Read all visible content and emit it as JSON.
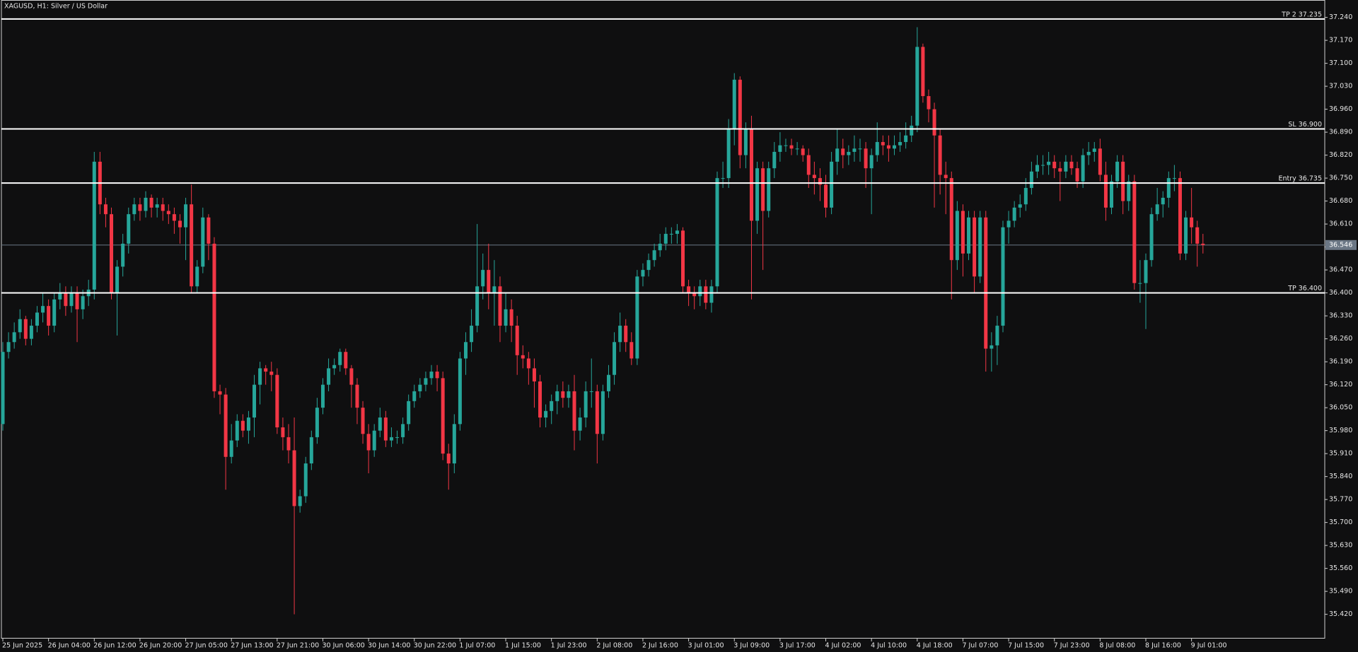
{
  "chart_data": {
    "type": "candlestick",
    "title": "XAGUSD, H1:  Silver / US Dollar",
    "up_color": "#26a69a",
    "down_color": "#f23645",
    "categories": [
      "25 Jun 2025",
      null,
      null,
      null,
      null,
      null,
      null,
      null,
      "26 Jun 04:00",
      null,
      null,
      null,
      null,
      null,
      null,
      null,
      "26 Jun 12:00",
      null,
      null,
      null,
      null,
      null,
      null,
      null,
      "26 Jun 20:00",
      null,
      null,
      null,
      null,
      null,
      null,
      null,
      "27 Jun 05:00",
      null,
      null,
      null,
      null,
      null,
      null,
      null,
      "27 Jun 13:00",
      null,
      null,
      null,
      null,
      null,
      null,
      null,
      "27 Jun 21:00",
      null,
      null,
      null,
      null,
      null,
      null,
      null,
      "30 Jun 06:00",
      null,
      null,
      null,
      null,
      null,
      null,
      null,
      "30 Jun 14:00",
      null,
      null,
      null,
      null,
      null,
      null,
      null,
      "30 Jun 22:00",
      null,
      null,
      null,
      null,
      null,
      null,
      null,
      "1 Jul 07:00",
      null,
      null,
      null,
      null,
      null,
      null,
      null,
      "1 Jul 15:00",
      null,
      null,
      null,
      null,
      null,
      null,
      null,
      "1 Jul 23:00",
      null,
      null,
      null,
      null,
      null,
      null,
      null,
      "2 Jul 08:00",
      null,
      null,
      null,
      null,
      null,
      null,
      null,
      "2 Jul 16:00",
      null,
      null,
      null,
      null,
      null,
      null,
      null,
      "3 Jul 01:00",
      null,
      null,
      null,
      null,
      null,
      null,
      null,
      "3 Jul 09:00",
      null,
      null,
      null,
      null,
      null,
      null,
      null,
      "3 Jul 17:00",
      null,
      null,
      null,
      null,
      null,
      null,
      null,
      "4 Jul 02:00",
      null,
      null,
      null,
      null,
      null,
      null,
      null,
      "4 Jul 10:00",
      null,
      null,
      null,
      null,
      null,
      null,
      null,
      "4 Jul 18:00",
      null,
      null,
      null,
      null,
      null,
      null,
      null,
      "7 Jul 07:00",
      null,
      null,
      null,
      null,
      null,
      null,
      null,
      "7 Jul 15:00",
      null,
      null,
      null,
      null,
      null,
      null,
      null,
      "7 Jul 23:00",
      null,
      null,
      null,
      null,
      null,
      null,
      null,
      "8 Jul 08:00",
      null,
      null,
      null,
      null,
      null,
      null,
      null,
      "8 Jul 16:00",
      null,
      null,
      null,
      null,
      null,
      null,
      null,
      "9 Jul 01:00",
      null,
      null
    ],
    "open": [
      36.0,
      36.22,
      36.25,
      36.28,
      36.32,
      36.26,
      36.3,
      36.34,
      36.36,
      36.3,
      36.38,
      36.4,
      36.36,
      36.4,
      36.35,
      36.39,
      36.41,
      36.8,
      36.67,
      36.64,
      36.4,
      36.48,
      36.55,
      36.64,
      36.67,
      36.65,
      36.69,
      36.66,
      36.67,
      36.65,
      36.64,
      36.62,
      36.6,
      36.67,
      36.42,
      36.48,
      36.63,
      36.55,
      36.1,
      36.09,
      35.9,
      35.95,
      36.01,
      35.98,
      36.02,
      36.12,
      36.17,
      36.16,
      36.15,
      35.99,
      35.96,
      35.92,
      35.75,
      35.78,
      35.88,
      35.96,
      36.05,
      36.12,
      36.17,
      36.18,
      36.22,
      36.17,
      36.12,
      36.05,
      35.97,
      35.92,
      35.98,
      36.02,
      35.95,
      35.96,
      35.96,
      36.0,
      36.07,
      36.1,
      36.12,
      36.14,
      36.16,
      36.14,
      35.91,
      35.88,
      36.0,
      36.2,
      36.25,
      36.3,
      36.42,
      36.47,
      36.4,
      36.42,
      36.3,
      36.35,
      36.3,
      36.21,
      36.2,
      36.17,
      36.13,
      36.02,
      36.04,
      36.07,
      36.1,
      36.08,
      36.1,
      35.98,
      36.02,
      36.1,
      36.1,
      35.97,
      36.1,
      36.15,
      36.25,
      36.3,
      36.25,
      36.2,
      36.45,
      36.47,
      36.5,
      36.53,
      36.55,
      36.58,
      36.58,
      36.59,
      36.42,
      36.4,
      36.39,
      36.42,
      36.37,
      36.42,
      36.75,
      36.75,
      36.9,
      37.05,
      36.82,
      36.9,
      36.62,
      36.78,
      36.65,
      36.78,
      36.83,
      36.85,
      36.85,
      36.84,
      36.84,
      36.82,
      36.76,
      36.75,
      36.73,
      36.66,
      36.8,
      36.84,
      36.82,
      36.83,
      36.84,
      36.84,
      36.78,
      36.82,
      36.86,
      36.85,
      36.84,
      36.85,
      36.86,
      36.88,
      36.91,
      37.15,
      37.0,
      36.96,
      36.88,
      36.76,
      36.75,
      36.5,
      36.65,
      36.52,
      36.63,
      36.45,
      36.63,
      36.23,
      36.24,
      36.3,
      36.6,
      36.62,
      36.66,
      36.67,
      36.72,
      36.77,
      36.79,
      36.79,
      36.8,
      36.78,
      36.77,
      36.8,
      36.78,
      36.74,
      36.82,
      36.83,
      36.84,
      36.76,
      36.66,
      36.74,
      36.8,
      36.68,
      36.74,
      36.43,
      36.43,
      36.5,
      36.64,
      36.67,
      36.69,
      36.75,
      36.75,
      36.52,
      36.63,
      36.6,
      36.55
    ],
    "high": [
      36.25,
      36.28,
      36.31,
      36.35,
      36.33,
      36.32,
      36.36,
      36.4,
      36.38,
      36.4,
      36.43,
      36.42,
      36.42,
      36.42,
      36.41,
      36.44,
      36.83,
      36.83,
      36.69,
      36.66,
      36.5,
      36.58,
      36.66,
      36.69,
      36.69,
      36.71,
      36.7,
      36.69,
      36.69,
      36.67,
      36.66,
      36.64,
      36.69,
      36.73,
      36.5,
      36.66,
      36.64,
      36.57,
      36.12,
      36.11,
      36.0,
      36.03,
      36.03,
      36.04,
      36.15,
      36.19,
      36.18,
      36.19,
      36.17,
      36.02,
      36.0,
      36.02,
      35.8,
      35.9,
      35.98,
      36.08,
      36.14,
      36.2,
      36.2,
      36.23,
      36.23,
      36.18,
      36.14,
      36.07,
      36.0,
      36.0,
      36.05,
      36.04,
      35.99,
      35.98,
      36.02,
      36.09,
      36.12,
      36.14,
      36.16,
      36.18,
      36.18,
      36.16,
      35.94,
      36.03,
      36.22,
      36.28,
      36.35,
      36.61,
      36.52,
      36.55,
      36.5,
      36.45,
      36.4,
      36.38,
      36.33,
      36.24,
      36.22,
      36.2,
      36.15,
      36.06,
      36.09,
      36.12,
      36.13,
      36.12,
      36.15,
      36.05,
      36.13,
      36.2,
      36.12,
      36.12,
      36.18,
      36.28,
      36.34,
      36.32,
      36.28,
      36.47,
      36.49,
      36.52,
      36.55,
      36.58,
      36.6,
      36.6,
      36.61,
      36.6,
      36.44,
      36.42,
      36.44,
      36.44,
      36.44,
      36.77,
      36.8,
      36.93,
      37.07,
      37.06,
      36.92,
      36.94,
      36.8,
      36.8,
      36.8,
      36.86,
      36.89,
      36.87,
      36.87,
      36.86,
      36.85,
      36.84,
      36.8,
      36.78,
      36.76,
      36.83,
      36.9,
      36.87,
      36.85,
      36.88,
      36.87,
      36.86,
      36.84,
      36.92,
      36.88,
      36.88,
      36.88,
      36.89,
      36.92,
      36.94,
      37.21,
      37.16,
      37.02,
      36.98,
      36.9,
      36.8,
      36.77,
      36.68,
      36.67,
      36.65,
      36.65,
      36.65,
      36.65,
      36.28,
      36.33,
      36.62,
      36.65,
      36.68,
      36.7,
      36.75,
      36.8,
      36.82,
      36.82,
      36.83,
      36.82,
      36.8,
      36.82,
      36.82,
      36.8,
      36.84,
      36.86,
      36.86,
      36.87,
      36.8,
      36.76,
      36.82,
      36.82,
      36.76,
      36.76,
      36.5,
      36.52,
      36.66,
      36.72,
      36.71,
      36.77,
      36.79,
      36.77,
      36.65,
      36.72,
      36.62,
      36.58
    ],
    "low": [
      35.98,
      36.2,
      36.23,
      36.26,
      36.24,
      36.24,
      36.28,
      36.31,
      36.27,
      36.28,
      36.35,
      36.33,
      36.34,
      36.25,
      36.32,
      36.36,
      36.38,
      36.64,
      36.6,
      36.38,
      36.27,
      36.45,
      36.52,
      36.62,
      36.62,
      36.63,
      36.63,
      36.63,
      36.62,
      36.61,
      36.58,
      36.55,
      36.5,
      36.4,
      36.4,
      36.46,
      36.5,
      36.08,
      36.03,
      35.8,
      35.88,
      35.93,
      35.96,
      35.94,
      35.96,
      36.06,
      36.12,
      36.1,
      35.97,
      35.92,
      35.88,
      35.42,
      35.73,
      35.76,
      35.86,
      35.94,
      36.03,
      36.1,
      36.15,
      36.16,
      36.15,
      36.05,
      36.0,
      35.94,
      35.85,
      35.9,
      35.96,
      35.93,
      35.93,
      35.94,
      35.94,
      35.98,
      36.05,
      36.08,
      36.1,
      36.12,
      36.1,
      35.89,
      35.8,
      35.85,
      35.98,
      36.15,
      36.22,
      36.28,
      36.38,
      36.35,
      36.3,
      36.25,
      36.28,
      36.25,
      36.15,
      36.17,
      36.12,
      36.05,
      35.99,
      35.99,
      36.0,
      36.03,
      36.05,
      36.05,
      35.92,
      35.95,
      35.99,
      36.05,
      35.88,
      35.95,
      36.08,
      36.12,
      36.22,
      36.22,
      36.18,
      36.18,
      36.42,
      36.45,
      36.48,
      36.51,
      36.53,
      36.55,
      36.55,
      36.4,
      36.36,
      36.35,
      36.36,
      36.35,
      36.34,
      36.4,
      36.72,
      36.72,
      36.85,
      36.78,
      36.78,
      36.38,
      36.58,
      36.47,
      36.63,
      36.75,
      36.8,
      36.83,
      36.82,
      36.82,
      36.8,
      36.72,
      36.7,
      36.68,
      36.63,
      36.64,
      36.76,
      36.78,
      36.79,
      36.8,
      36.8,
      36.72,
      36.64,
      36.8,
      36.82,
      36.8,
      36.82,
      36.83,
      36.84,
      36.86,
      36.89,
      36.98,
      36.92,
      36.66,
      36.7,
      36.64,
      36.38,
      36.47,
      36.45,
      36.5,
      36.4,
      36.43,
      36.16,
      36.16,
      36.18,
      36.28,
      36.55,
      36.6,
      36.63,
      36.65,
      36.7,
      36.75,
      36.76,
      36.76,
      36.75,
      36.68,
      36.75,
      36.76,
      36.72,
      36.72,
      36.79,
      36.8,
      36.74,
      36.62,
      36.64,
      36.72,
      36.64,
      36.65,
      36.41,
      36.37,
      36.29,
      36.48,
      36.62,
      36.63,
      36.66,
      36.71,
      36.5,
      36.5,
      36.55,
      36.48,
      36.52
    ],
    "close": [
      36.22,
      36.25,
      36.28,
      36.32,
      36.26,
      36.3,
      36.34,
      36.36,
      36.3,
      36.38,
      36.4,
      36.36,
      36.4,
      36.35,
      36.39,
      36.41,
      36.8,
      36.67,
      36.64,
      36.4,
      36.48,
      36.55,
      36.64,
      36.67,
      36.65,
      36.69,
      36.66,
      36.67,
      36.65,
      36.64,
      36.62,
      36.6,
      36.67,
      36.42,
      36.48,
      36.63,
      36.55,
      36.1,
      36.09,
      35.9,
      35.95,
      36.01,
      35.98,
      36.02,
      36.12,
      36.17,
      36.16,
      36.15,
      35.99,
      35.96,
      35.92,
      35.75,
      35.78,
      35.88,
      35.96,
      36.05,
      36.12,
      36.17,
      36.18,
      36.22,
      36.17,
      36.12,
      36.05,
      35.97,
      35.92,
      35.98,
      36.02,
      35.95,
      35.96,
      35.96,
      36.0,
      36.07,
      36.1,
      36.12,
      36.14,
      36.16,
      36.14,
      35.91,
      35.88,
      36.0,
      36.2,
      36.25,
      36.3,
      36.42,
      36.47,
      36.4,
      36.42,
      36.3,
      36.35,
      36.3,
      36.21,
      36.2,
      36.17,
      36.13,
      36.02,
      36.04,
      36.07,
      36.1,
      36.08,
      36.1,
      35.98,
      36.02,
      36.1,
      36.1,
      35.97,
      36.1,
      36.15,
      36.25,
      36.3,
      36.25,
      36.2,
      36.45,
      36.47,
      36.5,
      36.53,
      36.55,
      36.58,
      36.58,
      36.59,
      36.42,
      36.4,
      36.39,
      36.42,
      36.37,
      36.42,
      36.75,
      36.75,
      36.9,
      37.05,
      36.82,
      36.9,
      36.62,
      36.78,
      36.65,
      36.78,
      36.83,
      36.85,
      36.85,
      36.84,
      36.84,
      36.82,
      36.76,
      36.75,
      36.73,
      36.66,
      36.8,
      36.84,
      36.82,
      36.83,
      36.84,
      36.84,
      36.78,
      36.82,
      36.86,
      36.85,
      36.84,
      36.85,
      36.86,
      36.88,
      36.91,
      37.15,
      37.0,
      36.96,
      36.88,
      36.76,
      36.75,
      36.5,
      36.65,
      36.52,
      36.63,
      36.45,
      36.63,
      36.23,
      36.24,
      36.3,
      36.6,
      36.62,
      36.66,
      36.67,
      36.72,
      36.77,
      36.79,
      36.79,
      36.8,
      36.78,
      36.77,
      36.8,
      36.78,
      36.74,
      36.82,
      36.83,
      36.84,
      36.76,
      36.66,
      36.74,
      36.8,
      36.68,
      36.74,
      36.43,
      36.43,
      36.5,
      36.64,
      36.67,
      36.69,
      36.75,
      36.75,
      36.52,
      36.63,
      36.6,
      36.55,
      36.546
    ],
    "ylim": [
      35.346,
      37.293
    ],
    "yticks": [
      {
        "value": 35.42,
        "label": "35.420"
      },
      {
        "value": 35.49,
        "label": "35.490"
      },
      {
        "value": 35.56,
        "label": "35.560"
      },
      {
        "value": 35.63,
        "label": "35.630"
      },
      {
        "value": 35.7,
        "label": "35.700"
      },
      {
        "value": 35.77,
        "label": "35.770"
      },
      {
        "value": 35.84,
        "label": "35.840"
      },
      {
        "value": 35.91,
        "label": "35.910"
      },
      {
        "value": 35.98,
        "label": "35.980"
      },
      {
        "value": 36.05,
        "label": "36.050"
      },
      {
        "value": 36.12,
        "label": "36.120"
      },
      {
        "value": 36.19,
        "label": "36.190"
      },
      {
        "value": 36.26,
        "label": "36.260"
      },
      {
        "value": 36.33,
        "label": "36.330"
      },
      {
        "value": 36.4,
        "label": "36.400"
      },
      {
        "value": 36.47,
        "label": "36.470"
      },
      {
        "value": 36.54,
        "label": "36.540"
      },
      {
        "value": 36.61,
        "label": "36.610"
      },
      {
        "value": 36.68,
        "label": "36.680"
      },
      {
        "value": 36.75,
        "label": "36.750"
      },
      {
        "value": 36.82,
        "label": "36.820"
      },
      {
        "value": 36.89,
        "label": "36.890"
      },
      {
        "value": 36.96,
        "label": "36.960"
      },
      {
        "value": 37.03,
        "label": "37.030"
      },
      {
        "value": 37.1,
        "label": "37.100"
      },
      {
        "value": 37.17,
        "label": "37.170"
      },
      {
        "value": 37.24,
        "label": "37.240"
      }
    ],
    "levels": [
      {
        "label": "TP 2 37.235",
        "value": 37.235,
        "color": "#ffffff"
      },
      {
        "label": "SL 36.900",
        "value": 36.9,
        "color": "#ffffff"
      },
      {
        "label": "Entry 36.735",
        "value": 36.735,
        "color": "#ffffff"
      },
      {
        "label": "TP 36.400",
        "value": 36.4,
        "color": "#ffffff"
      }
    ],
    "last_price": 36.546,
    "last_price_color": "#6b7785"
  }
}
